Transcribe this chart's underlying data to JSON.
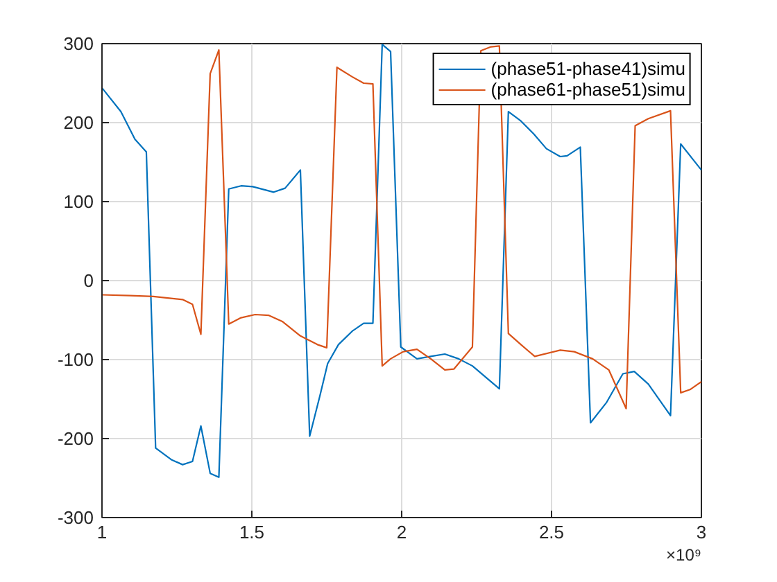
{
  "chart_data": {
    "type": "line",
    "xlim": [
      1,
      3
    ],
    "ylim": [
      -300,
      300
    ],
    "xticks": [
      1,
      1.5,
      2,
      2.5,
      3
    ],
    "yticks": [
      -300,
      -200,
      -100,
      0,
      100,
      200,
      300
    ],
    "grid": true,
    "legend": "top right",
    "annotations": [
      "×10⁹"
    ],
    "series": [
      {
        "name": "(phase51-phase41)simu",
        "color": "#0072bd",
        "x": [
          1.0,
          1.063,
          1.11,
          1.148,
          1.179,
          1.233,
          1.269,
          1.302,
          1.33,
          1.361,
          1.39,
          1.423,
          1.464,
          1.503,
          1.573,
          1.611,
          1.662,
          1.693,
          1.727,
          1.753,
          1.789,
          1.835,
          1.873,
          1.904,
          1.935,
          1.963,
          1.997,
          2.051,
          2.097,
          2.144,
          2.19,
          2.236,
          2.326,
          2.356,
          2.398,
          2.44,
          2.483,
          2.529,
          2.552,
          2.596,
          2.63,
          2.684,
          2.738,
          2.776,
          2.823,
          2.897,
          2.931,
          3.0
        ],
        "values": [
          244,
          214,
          179,
          163,
          -212,
          -227,
          -233,
          -229,
          -184,
          -244,
          -249,
          116,
          120,
          119,
          112,
          117,
          140,
          -197,
          -146,
          -105,
          -81,
          -64,
          -54,
          -54,
          299,
          290,
          -84,
          -99,
          -96,
          -93,
          -99,
          -108,
          -137,
          214,
          202,
          186,
          167,
          157,
          158,
          169,
          -180,
          -154,
          -118,
          -115,
          -131,
          -171,
          173,
          140
        ]
      },
      {
        "name": "(phase61-phase51)simu",
        "color": "#d95319",
        "x": [
          1.0,
          1.094,
          1.171,
          1.269,
          1.302,
          1.33,
          1.361,
          1.39,
          1.423,
          1.464,
          1.511,
          1.557,
          1.603,
          1.662,
          1.719,
          1.75,
          1.784,
          1.835,
          1.873,
          1.904,
          1.935,
          1.963,
          2.005,
          2.051,
          2.097,
          2.144,
          2.174,
          2.236,
          2.264,
          2.298,
          2.326,
          2.356,
          2.398,
          2.444,
          2.529,
          2.576,
          2.637,
          2.691,
          2.749,
          2.779,
          2.823,
          2.897,
          2.931,
          2.962,
          3.0
        ],
        "values": [
          -18,
          -19,
          -20,
          -24,
          -30,
          -68,
          262,
          292,
          -55,
          -47,
          -43,
          -44,
          -52,
          -70,
          -81,
          -85,
          270,
          258,
          250,
          249,
          -108,
          -99,
          -90,
          -87,
          -99,
          -113,
          -112,
          -84,
          291,
          296,
          297,
          -67,
          -81,
          -96,
          -88,
          -90,
          -99,
          -113,
          -162,
          196,
          205,
          215,
          -142,
          -138,
          -128
        ]
      }
    ]
  }
}
